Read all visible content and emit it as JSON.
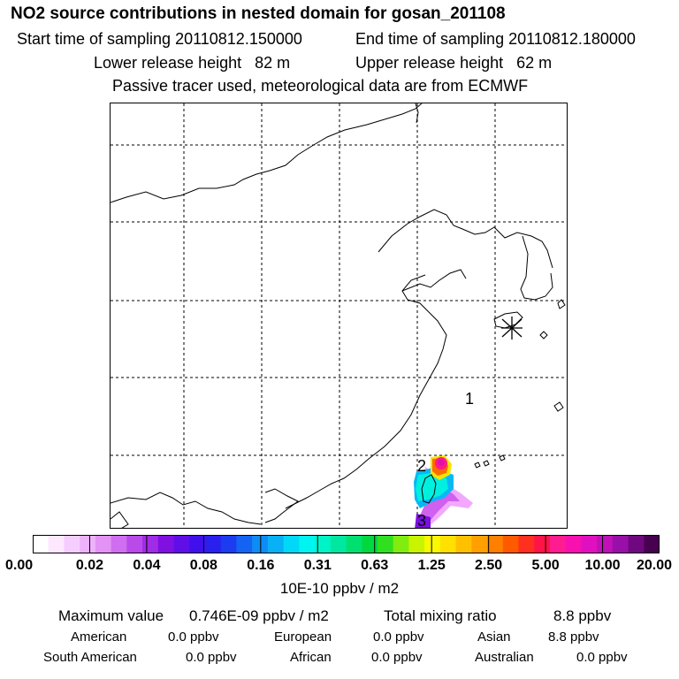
{
  "header": {
    "title": "NO2 source contributions in nested domain for gosan_201108",
    "start_label": "Start time of sampling 20110812.150000",
    "end_label": "End time of sampling 20110812.180000",
    "lower_label": "Lower release height   82 m",
    "upper_label": "Upper release height   62 m",
    "tracer_note": "Passive tracer used, meteorological data are from ECMWF"
  },
  "map": {
    "markers": {
      "m1": "1",
      "m2": "2",
      "m3": "3"
    },
    "receptor_icon": "asterisk-icon"
  },
  "colorbar": {
    "ticks": [
      "0.00",
      "0.02",
      "0.04",
      "0.08",
      "0.16",
      "0.31",
      "0.63",
      "1.25",
      "2.50",
      "5.00",
      "10.00",
      "20.00"
    ],
    "colors": [
      "#ffffff",
      "#fde8ff",
      "#f6cdff",
      "#eeb2fb",
      "#e392f6",
      "#cf6ef0",
      "#b94ae9",
      "#a12ce6",
      "#8010e2",
      "#5f0ee8",
      "#4010ec",
      "#2a20ee",
      "#1c3cf0",
      "#1464f4",
      "#0e8cf4",
      "#08b0f6",
      "#00d8f8",
      "#00f4f0",
      "#00f4c8",
      "#00e8a0",
      "#00e070",
      "#00d840",
      "#30e020",
      "#80ec10",
      "#c8f400",
      "#f8f800",
      "#ffe000",
      "#ffc000",
      "#ffa000",
      "#ff8000",
      "#ff5a00",
      "#ff3020",
      "#ff1448",
      "#ff1c90",
      "#f810b0",
      "#e010c0",
      "#c010b8",
      "#9810a8",
      "#700880",
      "#480050"
    ],
    "unit": "10E-10 ppbv / m2"
  },
  "summary": {
    "max_label": "Maximum value",
    "max_value": "0.746E-09 ppbv / m2",
    "total_label": "Total mixing ratio",
    "total_value": "8.8 ppbv",
    "regions": [
      {
        "name": "American",
        "value": "0.0 ppbv"
      },
      {
        "name": "European",
        "value": "0.0 ppbv"
      },
      {
        "name": "Asian",
        "value": "8.8 ppbv"
      },
      {
        "name": "South American",
        "value": "0.0 ppbv"
      },
      {
        "name": "African",
        "value": "0.0 ppbv"
      },
      {
        "name": "Australian",
        "value": "0.0 ppbv"
      }
    ]
  }
}
